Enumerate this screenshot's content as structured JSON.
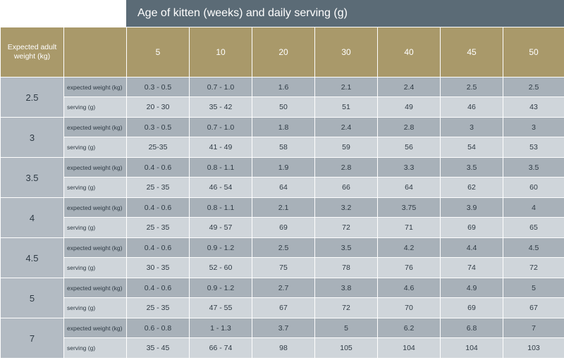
{
  "title": "Age of kitten (weeks) and daily serving (g)",
  "corner_label": "Expected adult weight (kg)",
  "weeks": [
    "5",
    "10",
    "20",
    "30",
    "40",
    "45",
    "50"
  ],
  "row_labels": {
    "expected": "expected weight (kg)",
    "serving": "serving (g)"
  },
  "groups": [
    {
      "weight": "2.5",
      "expected": [
        "0.3 - 0.5",
        "0.7 - 1.0",
        "1.6",
        "2.1",
        "2.4",
        "2.5",
        "2.5"
      ],
      "serving": [
        "20 - 30",
        "35 - 42",
        "50",
        "51",
        "49",
        "46",
        "43"
      ]
    },
    {
      "weight": "3",
      "expected": [
        "0.3 - 0.5",
        "0.7 - 1.0",
        "1.8",
        "2.4",
        "2.8",
        "3",
        "3"
      ],
      "serving": [
        "25-35",
        "41 - 49",
        "58",
        "59",
        "56",
        "54",
        "53"
      ]
    },
    {
      "weight": "3.5",
      "expected": [
        "0.4 - 0.6",
        "0.8 - 1.1",
        "1.9",
        "2.8",
        "3.3",
        "3.5",
        "3.5"
      ],
      "serving": [
        "25 - 35",
        "46 - 54",
        "64",
        "66",
        "64",
        "62",
        "60"
      ]
    },
    {
      "weight": "4",
      "expected": [
        "0.4 - 0.6",
        "0.8 - 1.1",
        "2.1",
        "3.2",
        "3.75",
        "3.9",
        "4"
      ],
      "serving": [
        "25 - 35",
        "49 - 57",
        "69",
        "72",
        "71",
        "69",
        "65"
      ]
    },
    {
      "weight": "4.5",
      "expected": [
        "0.4 - 0.6",
        "0.9 - 1.2",
        "2.5",
        "3.5",
        "4.2",
        "4.4",
        "4.5"
      ],
      "serving": [
        "30 - 35",
        "52 - 60",
        "75",
        "78",
        "76",
        "74",
        "72"
      ]
    },
    {
      "weight": "5",
      "expected": [
        "0.4 - 0.6",
        "0.9 - 1.2",
        "2.7",
        "3.8",
        "4.6",
        "4.9",
        "5"
      ],
      "serving": [
        "25 - 35",
        "47 - 55",
        "67",
        "72",
        "70",
        "69",
        "67"
      ]
    },
    {
      "weight": "7",
      "expected": [
        "0.6 - 0.8",
        "1 - 1.3",
        "3.7",
        "5",
        "6.2",
        "6.8",
        "7"
      ],
      "serving": [
        "35 - 45",
        "66 - 74",
        "98",
        "105",
        "104",
        "104",
        "103"
      ]
    }
  ]
}
